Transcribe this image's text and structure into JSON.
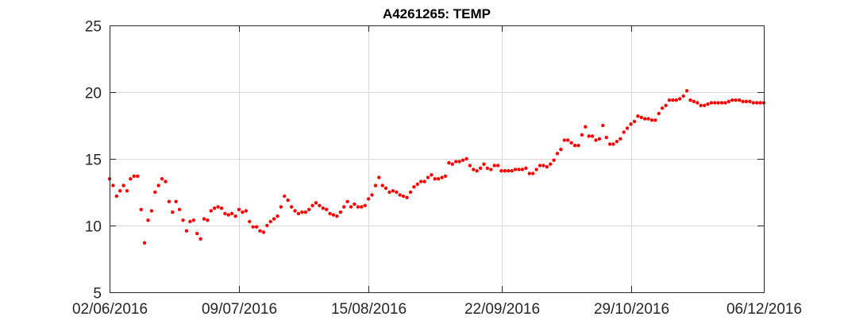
{
  "chart_data": {
    "type": "scatter",
    "title": "A4261265: TEMP",
    "xlabel": "",
    "ylabel": "",
    "x_is_date": true,
    "xlim": [
      "2016-06-02",
      "2016-12-06"
    ],
    "ylim": [
      5,
      25
    ],
    "x_ticks": [
      "2016-06-02",
      "2016-07-09",
      "2016-08-15",
      "2016-09-22",
      "2016-10-29",
      "2016-12-06"
    ],
    "x_tick_labels": [
      "02/06/2016",
      "09/07/2016",
      "15/08/2016",
      "22/09/2016",
      "29/10/2016",
      "06/12/2016"
    ],
    "y_ticks": [
      5,
      10,
      15,
      20,
      25
    ],
    "y_tick_labels": [
      "5",
      "10",
      "15",
      "20",
      "25"
    ],
    "grid": true,
    "marker_color": "#ff0000",
    "series": [
      {
        "x": [
          "2016-06-02",
          "2016-06-03",
          "2016-06-04",
          "2016-06-05",
          "2016-06-06",
          "2016-06-07",
          "2016-06-08",
          "2016-06-09",
          "2016-06-10",
          "2016-06-11",
          "2016-06-12",
          "2016-06-13",
          "2016-06-14",
          "2016-06-15",
          "2016-06-16",
          "2016-06-17",
          "2016-06-18",
          "2016-06-19",
          "2016-06-20",
          "2016-06-21",
          "2016-06-22",
          "2016-06-23",
          "2016-06-24",
          "2016-06-25",
          "2016-06-26",
          "2016-06-27",
          "2016-06-28",
          "2016-06-29",
          "2016-06-30",
          "2016-07-01",
          "2016-07-02",
          "2016-07-03",
          "2016-07-04",
          "2016-07-05",
          "2016-07-06",
          "2016-07-07",
          "2016-07-08",
          "2016-07-09",
          "2016-07-10",
          "2016-07-11",
          "2016-07-12",
          "2016-07-13",
          "2016-07-14",
          "2016-07-15",
          "2016-07-16",
          "2016-07-17",
          "2016-07-18",
          "2016-07-19",
          "2016-07-20",
          "2016-07-21",
          "2016-07-22",
          "2016-07-23",
          "2016-07-24",
          "2016-07-25",
          "2016-07-26",
          "2016-07-27",
          "2016-07-28",
          "2016-07-29",
          "2016-07-30",
          "2016-07-31",
          "2016-08-01",
          "2016-08-02",
          "2016-08-03",
          "2016-08-04",
          "2016-08-05",
          "2016-08-06",
          "2016-08-07",
          "2016-08-08",
          "2016-08-09",
          "2016-08-10",
          "2016-08-11",
          "2016-08-12",
          "2016-08-13",
          "2016-08-14",
          "2016-08-15",
          "2016-08-16",
          "2016-08-17",
          "2016-08-18",
          "2016-08-19",
          "2016-08-20",
          "2016-08-21",
          "2016-08-22",
          "2016-08-23",
          "2016-08-24",
          "2016-08-25",
          "2016-08-26",
          "2016-08-27",
          "2016-08-28",
          "2016-08-29",
          "2016-08-30",
          "2016-08-31",
          "2016-09-01",
          "2016-09-02",
          "2016-09-03",
          "2016-09-04",
          "2016-09-05",
          "2016-09-06",
          "2016-09-07",
          "2016-09-08",
          "2016-09-09",
          "2016-09-10",
          "2016-09-11",
          "2016-09-12",
          "2016-09-13",
          "2016-09-14",
          "2016-09-15",
          "2016-09-16",
          "2016-09-17",
          "2016-09-18",
          "2016-09-19",
          "2016-09-20",
          "2016-09-21",
          "2016-09-22",
          "2016-09-23",
          "2016-09-24",
          "2016-09-25",
          "2016-09-26",
          "2016-09-27",
          "2016-09-28",
          "2016-09-29",
          "2016-09-30",
          "2016-10-01",
          "2016-10-02",
          "2016-10-03",
          "2016-10-04",
          "2016-10-05",
          "2016-10-06",
          "2016-10-07",
          "2016-10-08",
          "2016-10-09",
          "2016-10-10",
          "2016-10-11",
          "2016-10-12",
          "2016-10-13",
          "2016-10-14",
          "2016-10-15",
          "2016-10-16",
          "2016-10-17",
          "2016-10-18",
          "2016-10-19",
          "2016-10-20",
          "2016-10-21",
          "2016-10-22",
          "2016-10-23",
          "2016-10-24",
          "2016-10-25",
          "2016-10-26",
          "2016-10-27",
          "2016-10-28",
          "2016-10-29",
          "2016-10-30",
          "2016-10-31",
          "2016-11-01",
          "2016-11-02",
          "2016-11-03",
          "2016-11-04",
          "2016-11-05",
          "2016-11-06",
          "2016-11-07",
          "2016-11-08",
          "2016-11-09",
          "2016-11-10",
          "2016-11-11",
          "2016-11-12",
          "2016-11-13",
          "2016-11-14",
          "2016-11-15",
          "2016-11-16",
          "2016-11-17",
          "2016-11-18",
          "2016-11-19",
          "2016-11-20",
          "2016-11-21",
          "2016-11-22",
          "2016-11-23",
          "2016-11-24",
          "2016-11-25",
          "2016-11-26",
          "2016-11-27",
          "2016-11-28",
          "2016-11-29",
          "2016-11-30",
          "2016-12-01",
          "2016-12-02",
          "2016-12-03",
          "2016-12-04",
          "2016-12-05",
          "2016-12-06"
        ],
        "y": [
          13.5,
          13.0,
          12.2,
          12.6,
          13.0,
          12.6,
          13.5,
          13.7,
          13.7,
          11.2,
          8.7,
          10.4,
          11.1,
          12.5,
          13.0,
          13.5,
          13.3,
          11.8,
          11.0,
          11.8,
          11.2,
          10.4,
          9.6,
          10.3,
          10.4,
          9.4,
          9.0,
          10.5,
          10.4,
          11.1,
          11.3,
          11.4,
          11.3,
          10.9,
          10.8,
          10.9,
          10.7,
          11.2,
          11.0,
          11.1,
          10.3,
          9.9,
          9.9,
          9.6,
          9.5,
          10.0,
          10.3,
          10.5,
          10.7,
          11.4,
          12.2,
          11.9,
          11.4,
          11.1,
          10.9,
          11.0,
          11.0,
          11.2,
          11.5,
          11.7,
          11.5,
          11.3,
          11.2,
          10.9,
          10.8,
          10.7,
          11.0,
          11.4,
          11.8,
          11.4,
          11.6,
          11.4,
          11.4,
          11.5,
          12.0,
          12.3,
          13.0,
          13.6,
          13.0,
          12.8,
          12.5,
          12.6,
          12.5,
          12.3,
          12.2,
          12.1,
          12.5,
          12.9,
          13.1,
          13.3,
          13.3,
          13.6,
          13.8,
          13.5,
          13.5,
          13.6,
          13.7,
          14.7,
          14.6,
          14.8,
          14.8,
          14.9,
          15.0,
          14.5,
          14.2,
          14.1,
          14.3,
          14.6,
          14.3,
          14.2,
          14.5,
          14.5,
          14.1,
          14.1,
          14.1,
          14.1,
          14.2,
          14.2,
          14.2,
          14.3,
          13.9,
          13.9,
          14.2,
          14.5,
          14.5,
          14.4,
          14.6,
          14.9,
          15.4,
          15.7,
          16.4,
          16.4,
          16.2,
          16.0,
          16.0,
          16.8,
          17.4,
          16.7,
          16.7,
          16.4,
          16.5,
          17.5,
          16.6,
          16.1,
          16.1,
          16.3,
          16.5,
          17.0,
          17.3,
          17.6,
          17.8,
          18.2,
          18.1,
          18.0,
          18.0,
          17.9,
          17.9,
          18.4,
          18.8,
          19.0,
          19.4,
          19.4,
          19.4,
          19.5,
          19.7,
          20.1,
          19.4,
          19.3,
          19.2,
          19.0,
          19.0,
          19.1,
          19.2,
          19.2,
          19.2,
          19.2,
          19.2,
          19.3,
          19.4,
          19.4,
          19.4,
          19.3,
          19.3,
          19.3,
          19.2,
          19.2,
          19.2,
          19.2
        ]
      }
    ]
  }
}
